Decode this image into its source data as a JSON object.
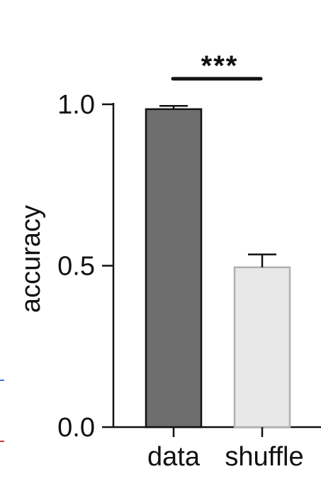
{
  "chart_data": {
    "type": "bar",
    "categories": [
      "data",
      "shuffle"
    ],
    "values": [
      0.985,
      0.495
    ],
    "errors": [
      0.01,
      0.04
    ],
    "ylabel": "accuracy",
    "xlabel": "",
    "ylim": [
      0,
      1.0
    ],
    "yticks": [
      "0.0",
      "0.5",
      "1.0"
    ],
    "bar_colors": [
      "#6e6e6e",
      "#e8e8e8"
    ],
    "bar_edge_colors": [
      "#111111",
      "#b0b0b0"
    ],
    "significance": "***"
  }
}
